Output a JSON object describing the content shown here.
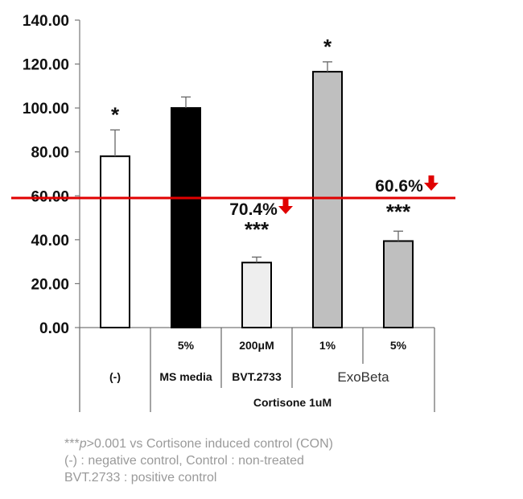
{
  "chart_data": {
    "type": "bar",
    "ylim": [
      0,
      140
    ],
    "y_ticks": [
      "0.00",
      "20.00",
      "40.00",
      "60.00",
      "80.00",
      "100.00",
      "120.00",
      "140.00"
    ],
    "categories": [
      {
        "dose": "",
        "name": "(-)",
        "value": 78,
        "error": 12,
        "color": "#ffffff",
        "sig": "*"
      },
      {
        "dose": "5%",
        "name": "MS media",
        "value": 100,
        "error": 5,
        "color": "#000000",
        "sig": ""
      },
      {
        "dose": "200μM",
        "name": "BVT.2733",
        "value": 29.6,
        "error": 2.5,
        "color": "#eeeeee",
        "sig": "***"
      },
      {
        "dose": "1%",
        "name": "ExoBeta",
        "value": 116.5,
        "error": 4.5,
        "color": "#bfbfbf",
        "sig": "*"
      },
      {
        "dose": "5%",
        "name": "",
        "value": 39.4,
        "error": 4.5,
        "color": "#bfbfbf",
        "sig": "***"
      }
    ],
    "group_label": "ExoBeta",
    "outer_label": "Cortisone 1uM",
    "reference_line": {
      "value": 59,
      "color": "#e00000"
    },
    "reductions": [
      {
        "label": "70.4%",
        "bar_index": 2
      },
      {
        "label": "60.6%",
        "bar_index": 4
      }
    ],
    "arrow_color": "#e00000"
  },
  "notes": {
    "line1_prefix": "***",
    "line1_italic": "p",
    "line1_rest": ">0.001 vs Cortisone induced control (CON)",
    "line2": "(-) : negative control, Control : non-treated",
    "line3": "BVT.2733 : positive control"
  }
}
